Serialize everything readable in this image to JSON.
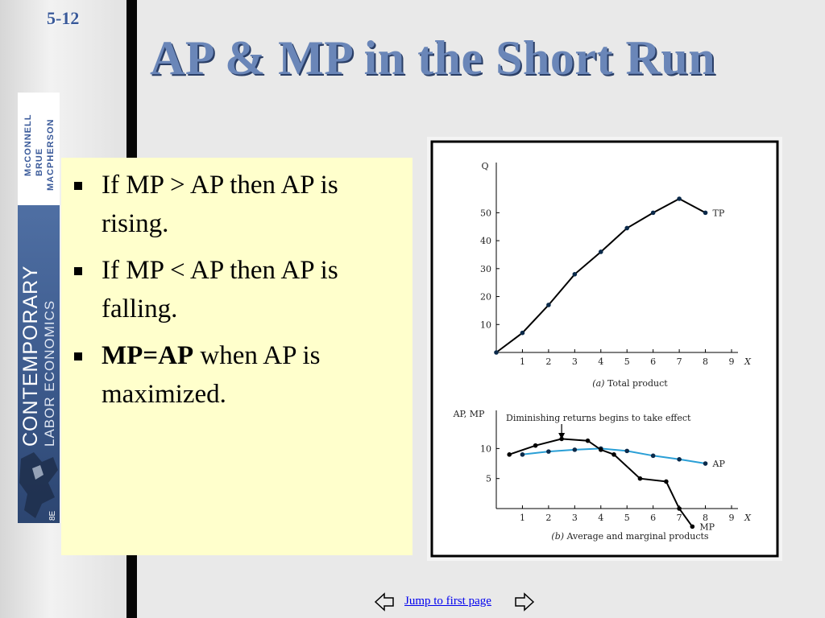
{
  "slide": {
    "number": "5-12",
    "title": "AP & MP in the Short Run"
  },
  "book": {
    "authors": [
      "McCONNELL",
      "BRUE",
      "MACPHERSON"
    ],
    "title_line1": "CONTEMPORARY",
    "title_line2": "LABOR ECONOMICS",
    "edition": "8E"
  },
  "bullets": [
    {
      "text": "If MP > AP then AP is rising."
    },
    {
      "text": "If MP < AP then AP is falling."
    },
    {
      "bold": "MP=AP",
      "text": " when AP is maximized."
    }
  ],
  "chart_data": [
    {
      "type": "line",
      "caption_label": "(a)",
      "caption_text": " Total product",
      "ylabel": "Q",
      "xlabel": "X",
      "xlim": [
        0,
        9
      ],
      "ylim": [
        0,
        55
      ],
      "x_ticks": [
        "1",
        "2",
        "3",
        "4",
        "5",
        "6",
        "7",
        "8",
        "9"
      ],
      "y_ticks": [
        "10",
        "20",
        "30",
        "40",
        "50"
      ],
      "series": [
        {
          "name": "TP",
          "x": [
            0,
            1,
            2,
            3,
            4,
            5,
            6,
            7,
            8
          ],
          "y": [
            0,
            7,
            17,
            28,
            36,
            44.5,
            50,
            55,
            50
          ]
        }
      ]
    },
    {
      "type": "line",
      "caption_label": "(b)",
      "caption_text": " Average and marginal products",
      "ylabel": "AP, MP",
      "xlabel": "X",
      "xlim": [
        0,
        9
      ],
      "ylim": [
        0,
        13
      ],
      "x_ticks": [
        "1",
        "2",
        "3",
        "4",
        "5",
        "6",
        "7",
        "8",
        "9"
      ],
      "y_ticks": [
        "5",
        "10"
      ],
      "annotation": "Diminishing returns begins to take effect",
      "series": [
        {
          "name": "AP",
          "color": "#2a9fd6",
          "x": [
            1,
            2,
            3,
            4,
            5,
            6,
            7,
            8
          ],
          "y": [
            9,
            9.5,
            9.8,
            10,
            9.6,
            8.8,
            8.2,
            7.5
          ]
        },
        {
          "name": "MP",
          "color": "#000000",
          "x": [
            0.5,
            1.5,
            2.5,
            3.5,
            4,
            4.5,
            5.5,
            6.5,
            7,
            7.5
          ],
          "y": [
            9,
            10.5,
            11.6,
            11.3,
            9.8,
            9,
            5,
            4.5,
            0,
            -3
          ]
        }
      ]
    }
  ],
  "footer": {
    "link_text": "Jump to first page"
  }
}
